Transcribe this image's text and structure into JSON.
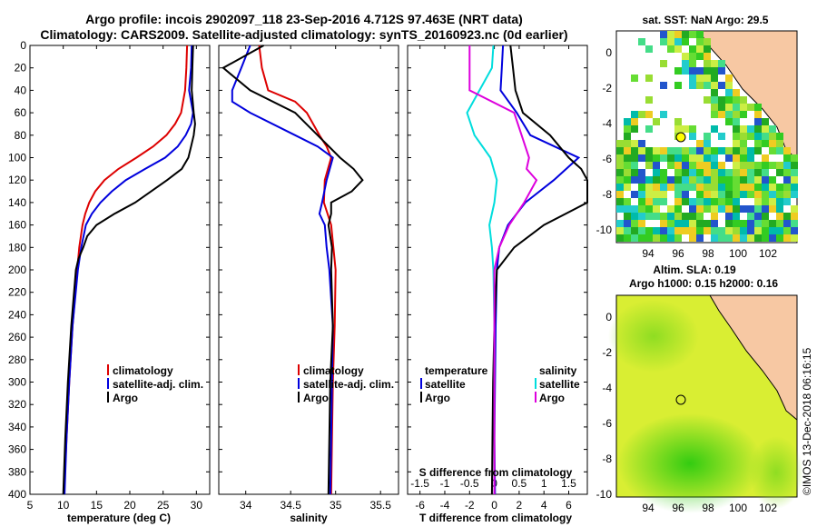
{
  "header": {
    "title_line1": "Argo profile: incois 2902097_118 23-Sep-2016 4.712S 97.463E (NRT data)",
    "title_line2": "Climatology: CARS2009. Satellite-adjusted climatology: synTS_20160923.nc (0d earlier)"
  },
  "colors": {
    "climatology": "#dd0000",
    "satellite": "#0000dd",
    "argo": "#000000",
    "salinity_sat": "#00dddd",
    "salinity_argo": "#dd00dd"
  },
  "chart_data": [
    {
      "type": "line",
      "id": "temperature",
      "xlabel": "temperature (deg C)",
      "ylabel": "",
      "xlim": [
        5,
        32
      ],
      "ylim": [
        400,
        0
      ],
      "xticks": [
        5,
        10,
        15,
        20,
        25,
        30
      ],
      "yticks": [
        0,
        20,
        40,
        60,
        80,
        100,
        120,
        140,
        160,
        180,
        200,
        220,
        240,
        260,
        280,
        300,
        320,
        340,
        360,
        380,
        400
      ],
      "legend": [
        "climatology",
        "satellite-adj. clim.",
        "Argo"
      ],
      "series": [
        {
          "name": "climatology",
          "depth": [
            0,
            20,
            40,
            60,
            70,
            80,
            90,
            100,
            110,
            120,
            130,
            140,
            150,
            160,
            180,
            200,
            250,
            300,
            350,
            400
          ],
          "values": [
            28.6,
            28.5,
            28.3,
            27.7,
            26.8,
            25.5,
            23.5,
            21.0,
            18.3,
            16.2,
            14.8,
            13.9,
            13.3,
            12.9,
            12.4,
            12.1,
            11.4,
            10.9,
            10.5,
            10.1
          ]
        },
        {
          "name": "satellite-adj. clim.",
          "depth": [
            0,
            20,
            40,
            60,
            70,
            80,
            90,
            100,
            110,
            120,
            130,
            140,
            150,
            160,
            180,
            200,
            250,
            300,
            350,
            400
          ],
          "values": [
            29.3,
            29.2,
            28.9,
            29.5,
            29.2,
            28.4,
            27.2,
            25.3,
            22.3,
            19.4,
            17.3,
            15.6,
            14.3,
            13.4,
            12.7,
            12.2,
            11.4,
            10.9,
            10.5,
            10.2
          ]
        },
        {
          "name": "Argo",
          "depth": [
            0,
            20,
            40,
            60,
            70,
            80,
            90,
            100,
            110,
            120,
            130,
            140,
            150,
            160,
            170,
            180,
            190,
            200,
            250,
            300,
            350,
            400
          ],
          "values": [
            29.5,
            29.4,
            29.3,
            29.6,
            29.8,
            29.6,
            29.2,
            28.8,
            27.8,
            25.6,
            23.2,
            20.8,
            17.7,
            15.0,
            13.6,
            13.0,
            12.3,
            11.9,
            11.2,
            10.7,
            10.3,
            10.0
          ]
        }
      ]
    },
    {
      "type": "line",
      "id": "salinity",
      "xlabel": "salinity",
      "ylabel": "",
      "xlim": [
        33.7,
        35.7
      ],
      "ylim": [
        400,
        0
      ],
      "xticks": [
        34,
        34.5,
        35,
        35.5
      ],
      "legend": [
        "climatology",
        "satellite-adj. clim.",
        "Argo"
      ],
      "series": [
        {
          "name": "climatology",
          "depth": [
            0,
            20,
            40,
            50,
            60,
            80,
            90,
            100,
            120,
            140,
            160,
            200,
            250,
            300,
            350,
            400
          ],
          "values": [
            34.15,
            34.18,
            34.25,
            34.55,
            34.68,
            34.82,
            34.9,
            34.95,
            34.88,
            34.87,
            34.95,
            35.0,
            34.99,
            34.97,
            34.96,
            34.95
          ]
        },
        {
          "name": "satellite-adj. clim.",
          "depth": [
            0,
            20,
            30,
            40,
            50,
            60,
            80,
            90,
            100,
            120,
            140,
            150,
            160,
            180,
            200,
            250,
            300,
            350,
            400
          ],
          "values": [
            34.05,
            33.95,
            33.9,
            33.85,
            33.85,
            34.05,
            34.55,
            34.8,
            34.97,
            34.9,
            34.85,
            34.82,
            34.88,
            34.9,
            34.93,
            34.97,
            34.96,
            34.95,
            34.94
          ]
        },
        {
          "name": "Argo",
          "depth": [
            0,
            20,
            40,
            60,
            80,
            100,
            110,
            120,
            130,
            140,
            150,
            160,
            180,
            200,
            250,
            300,
            350,
            400
          ],
          "values": [
            34.2,
            33.75,
            34.05,
            34.55,
            34.8,
            35.05,
            35.2,
            35.3,
            35.18,
            34.95,
            34.95,
            34.92,
            34.96,
            34.95,
            34.97,
            34.94,
            34.93,
            34.92
          ]
        }
      ]
    },
    {
      "type": "line",
      "id": "difference",
      "xlabel": "T difference from climatology",
      "xlabel_top": "S difference from climatology",
      "xlim": [
        -7,
        7.5
      ],
      "ylim": [
        400,
        0
      ],
      "xticks": [
        -6,
        -4,
        -2,
        0,
        2,
        4,
        6
      ],
      "xticks_top": [
        "-1.5",
        "-1",
        "-0.5",
        "0",
        "0.5",
        "1",
        "1.5"
      ],
      "legend_left_title": "temperature",
      "legend_right_title": "salinity",
      "legend_left": [
        "satellite",
        "Argo"
      ],
      "legend_right": [
        "satellite",
        "Argo"
      ],
      "series": [
        {
          "name": "T satellite",
          "depth": [
            0,
            20,
            40,
            60,
            80,
            100,
            120,
            140,
            160,
            180,
            200,
            250,
            300,
            350,
            400
          ],
          "values": [
            0.7,
            0.6,
            0.5,
            1.8,
            2.9,
            6.8,
            4.8,
            2.5,
            1.1,
            0.4,
            0.2,
            0.1,
            0.05,
            0.0,
            0.05
          ]
        },
        {
          "name": "T Argo",
          "depth": [
            0,
            20,
            40,
            60,
            80,
            100,
            110,
            120,
            140,
            160,
            180,
            200,
            250,
            300,
            350,
            400
          ],
          "values": [
            1.3,
            1.5,
            1.7,
            2.3,
            4.5,
            6.0,
            7.0,
            7.5,
            8.0,
            4.0,
            1.6,
            0.2,
            0.0,
            -0.1,
            -0.15,
            -0.2
          ]
        },
        {
          "name": "S satellite",
          "depth": [
            0,
            20,
            40,
            60,
            80,
            100,
            120,
            140,
            160,
            180,
            200,
            250,
            300,
            350,
            400
          ],
          "values": [
            -0.02,
            -0.05,
            -0.3,
            -0.55,
            -0.4,
            -0.08,
            0.05,
            0.0,
            -0.1,
            -0.05,
            -0.02,
            0.0,
            0.0,
            0.0,
            0.0
          ]
        },
        {
          "name": "S Argo",
          "depth": [
            0,
            20,
            40,
            60,
            80,
            100,
            110,
            120,
            140,
            160,
            180,
            200,
            250,
            300,
            350,
            400
          ],
          "values": [
            -0.5,
            -0.5,
            -0.5,
            0.4,
            0.55,
            0.7,
            0.65,
            0.85,
            0.6,
            0.3,
            0.1,
            0.0,
            0.0,
            0.0,
            0.0,
            0.0
          ]
        }
      ]
    }
  ],
  "map_sst": {
    "title": "sat. SST: NaN Argo: 29.5",
    "xticks": [
      "94",
      "96",
      "98",
      "100",
      "102"
    ],
    "yticks": [
      "0",
      "-2",
      "-4",
      "-6",
      "-8",
      "-10"
    ]
  },
  "map_sla": {
    "title": "Altim. SLA: 0.19",
    "subtitle": "Argo h1000: 0.15 h2000: 0.16",
    "xticks": [
      "94",
      "96",
      "98",
      "100",
      "102"
    ],
    "yticks": [
      "0",
      "-2",
      "-4",
      "-6",
      "-8",
      "-10"
    ]
  },
  "footer": {
    "credit": "©IMOS 13-Dec-2018 06:16:15"
  }
}
